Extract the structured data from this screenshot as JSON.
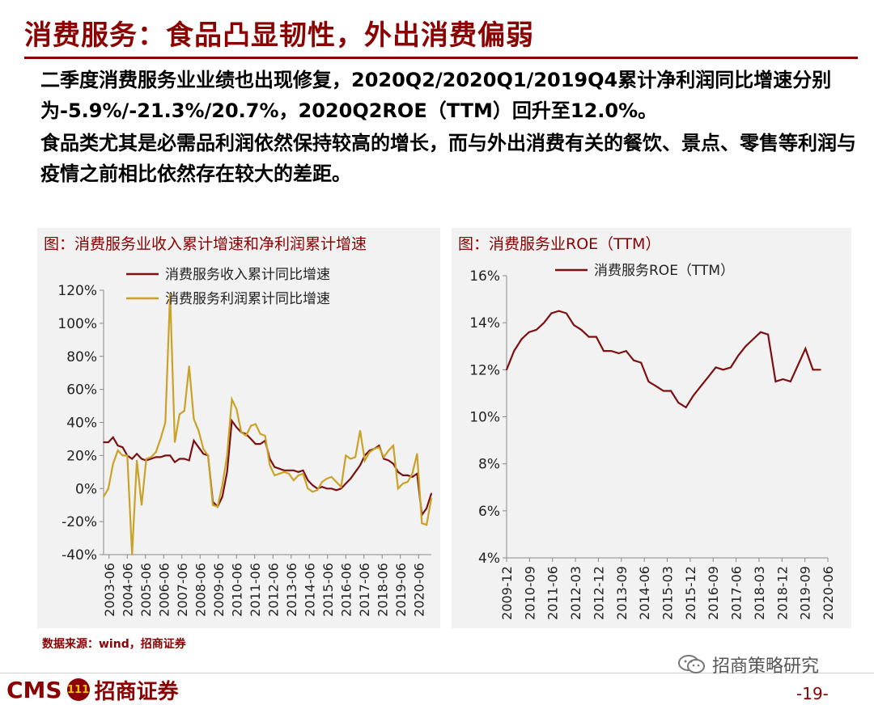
{
  "header": {
    "title": "消费服务：食品凸显韧性，外出消费偏弱"
  },
  "body": {
    "para1": "二季度消费服务业业绩也出现修复，2020Q2/2020Q1/2019Q4累计净利润同比增速分别为-5.9%/-21.3%/20.7%，2020Q2ROE（TTM）回升至12.0%。",
    "para2": "食品类尤其是必需品利润依然保持较高的增长，而与外出消费有关的餐饮、景点、零售等利润与疫情之前相比依然存在较大的差距。"
  },
  "footer": {
    "source": "数据来源：wind，招商证券",
    "brand_cms": "CMS",
    "brand_logo_text": "111",
    "brand_name": "招商证券",
    "wechat_label": "招商策略研究",
    "page_number": "-19-"
  },
  "colors": {
    "accent": "#8b0000",
    "series_revenue": "#7b1010",
    "series_profit": "#c9a227",
    "panel_bg": "#f2f2f2"
  },
  "chart_data": [
    {
      "type": "line",
      "title": "图：消费服务业收入累计增速和净利润累计增速",
      "xlabel": "",
      "ylabel": "",
      "ylim": [
        -40,
        120
      ],
      "y_ticks": [
        "-40%",
        "-20%",
        "0%",
        "20%",
        "40%",
        "60%",
        "80%",
        "100%",
        "120%"
      ],
      "y_tick_values": [
        -40,
        -20,
        0,
        20,
        40,
        60,
        80,
        100,
        120
      ],
      "x_tick_labels": [
        "2003-06",
        "2004-06",
        "2005-06",
        "2006-06",
        "2007-06",
        "2008-06",
        "2009-06",
        "2010-06",
        "2011-06",
        "2012-06",
        "2013-06",
        "2014-06",
        "2015-06",
        "2016-06",
        "2017-06",
        "2018-06",
        "2019-06",
        "2020-06"
      ],
      "x_start": 2003.25,
      "x_end": 2020.5,
      "legend_position": "top-left",
      "grid": false,
      "series": [
        {
          "name": "消费服务收入累计同比增速",
          "color": "#7b1010",
          "points": [
            [
              2003.25,
              28
            ],
            [
              2003.5,
              28
            ],
            [
              2003.75,
              31
            ],
            [
              2004.0,
              26
            ],
            [
              2004.25,
              25
            ],
            [
              2004.5,
              20
            ],
            [
              2004.75,
              18
            ],
            [
              2005.0,
              21
            ],
            [
              2005.25,
              18
            ],
            [
              2005.5,
              17
            ],
            [
              2005.75,
              18
            ],
            [
              2006.0,
              19
            ],
            [
              2006.25,
              19
            ],
            [
              2006.5,
              20
            ],
            [
              2006.75,
              20
            ],
            [
              2007.0,
              16
            ],
            [
              2007.25,
              18
            ],
            [
              2007.5,
              18
            ],
            [
              2007.75,
              17
            ],
            [
              2008.0,
              29
            ],
            [
              2008.25,
              25
            ],
            [
              2008.5,
              21
            ],
            [
              2008.75,
              20
            ],
            [
              2009.0,
              -8
            ],
            [
              2009.25,
              -11
            ],
            [
              2009.5,
              -5
            ],
            [
              2009.75,
              10
            ],
            [
              2010.0,
              41
            ],
            [
              2010.25,
              37
            ],
            [
              2010.5,
              34
            ],
            [
              2010.75,
              33
            ],
            [
              2011.0,
              30
            ],
            [
              2011.25,
              27
            ],
            [
              2011.5,
              27
            ],
            [
              2011.75,
              29
            ],
            [
              2012.0,
              18
            ],
            [
              2012.25,
              13
            ],
            [
              2012.5,
              12
            ],
            [
              2012.75,
              11
            ],
            [
              2013.0,
              11
            ],
            [
              2013.25,
              11
            ],
            [
              2013.5,
              10
            ],
            [
              2013.75,
              11
            ],
            [
              2014.0,
              5
            ],
            [
              2014.25,
              2
            ],
            [
              2014.5,
              0
            ],
            [
              2014.75,
              1
            ],
            [
              2015.0,
              0
            ],
            [
              2015.25,
              0
            ],
            [
              2015.5,
              -1
            ],
            [
              2015.75,
              0
            ],
            [
              2016.0,
              3
            ],
            [
              2016.25,
              6
            ],
            [
              2016.5,
              10
            ],
            [
              2016.75,
              14
            ],
            [
              2017.0,
              20
            ],
            [
              2017.25,
              23
            ],
            [
              2017.5,
              24
            ],
            [
              2017.75,
              26
            ],
            [
              2018.0,
              18
            ],
            [
              2018.25,
              17
            ],
            [
              2018.5,
              15
            ],
            [
              2018.75,
              10
            ],
            [
              2019.0,
              8
            ],
            [
              2019.25,
              8
            ],
            [
              2019.5,
              7
            ],
            [
              2019.75,
              9
            ],
            [
              2020.0,
              -16
            ],
            [
              2020.25,
              -12
            ],
            [
              2020.5,
              -3
            ]
          ]
        },
        {
          "name": "消费服务利润累计同比增速",
          "color": "#c9a227",
          "points": [
            [
              2003.25,
              -5
            ],
            [
              2003.5,
              0
            ],
            [
              2003.75,
              15
            ],
            [
              2004.0,
              23
            ],
            [
              2004.25,
              20
            ],
            [
              2004.5,
              20
            ],
            [
              2004.75,
              -40
            ],
            [
              2005.0,
              17
            ],
            [
              2005.25,
              -10
            ],
            [
              2005.5,
              18
            ],
            [
              2005.75,
              19
            ],
            [
              2006.0,
              22
            ],
            [
              2006.25,
              30
            ],
            [
              2006.5,
              40
            ],
            [
              2006.75,
              118
            ],
            [
              2007.0,
              28
            ],
            [
              2007.25,
              45
            ],
            [
              2007.5,
              47
            ],
            [
              2007.75,
              74
            ],
            [
              2008.0,
              42
            ],
            [
              2008.25,
              35
            ],
            [
              2008.5,
              24
            ],
            [
              2008.75,
              20
            ],
            [
              2009.0,
              -10
            ],
            [
              2009.25,
              -11
            ],
            [
              2009.5,
              2
            ],
            [
              2009.75,
              20
            ],
            [
              2010.0,
              54
            ],
            [
              2010.25,
              48
            ],
            [
              2010.5,
              34
            ],
            [
              2010.75,
              32
            ],
            [
              2011.0,
              38
            ],
            [
              2011.25,
              39
            ],
            [
              2011.5,
              33
            ],
            [
              2011.75,
              32
            ],
            [
              2012.0,
              14
            ],
            [
              2012.25,
              8
            ],
            [
              2012.5,
              9
            ],
            [
              2012.75,
              10
            ],
            [
              2013.0,
              9
            ],
            [
              2013.25,
              5
            ],
            [
              2013.5,
              8
            ],
            [
              2013.75,
              9
            ],
            [
              2014.0,
              0
            ],
            [
              2014.25,
              -2
            ],
            [
              2014.5,
              -1
            ],
            [
              2014.75,
              4
            ],
            [
              2015.0,
              6
            ],
            [
              2015.25,
              7
            ],
            [
              2015.5,
              4
            ],
            [
              2015.75,
              1
            ],
            [
              2016.0,
              20
            ],
            [
              2016.25,
              18
            ],
            [
              2016.5,
              19
            ],
            [
              2016.75,
              35
            ],
            [
              2017.0,
              17
            ],
            [
              2017.25,
              22
            ],
            [
              2017.5,
              24
            ],
            [
              2017.75,
              25
            ],
            [
              2018.0,
              19
            ],
            [
              2018.25,
              23
            ],
            [
              2018.5,
              26
            ],
            [
              2018.75,
              0
            ],
            [
              2019.0,
              3
            ],
            [
              2019.25,
              4
            ],
            [
              2019.5,
              9
            ],
            [
              2019.75,
              21
            ],
            [
              2020.0,
              -21
            ],
            [
              2020.25,
              -22
            ],
            [
              2020.5,
              -6
            ]
          ]
        }
      ]
    },
    {
      "type": "line",
      "title": "图：消费服务业ROE（TTM）",
      "xlabel": "",
      "ylabel": "",
      "ylim": [
        4,
        16
      ],
      "y_ticks": [
        "4%",
        "6%",
        "8%",
        "10%",
        "12%",
        "14%",
        "16%"
      ],
      "y_tick_values": [
        4,
        6,
        8,
        10,
        12,
        14,
        16
      ],
      "x_tick_labels": [
        "2009-12",
        "2010-09",
        "2011-06",
        "2012-03",
        "2012-12",
        "2013-09",
        "2014-06",
        "2015-03",
        "2015-12",
        "2016-09",
        "2017-06",
        "2018-03",
        "2018-12",
        "2019-09",
        "2020-06"
      ],
      "x_start": 2009.75,
      "x_end": 2020.5,
      "legend_position": "top-center",
      "grid": false,
      "series": [
        {
          "name": "消费服务ROE（TTM）",
          "color": "#7b1010",
          "points": [
            [
              2009.75,
              12.0
            ],
            [
              2010.0,
              12.8
            ],
            [
              2010.25,
              13.3
            ],
            [
              2010.5,
              13.6
            ],
            [
              2010.75,
              13.7
            ],
            [
              2011.0,
              14.0
            ],
            [
              2011.25,
              14.4
            ],
            [
              2011.5,
              14.5
            ],
            [
              2011.75,
              14.4
            ],
            [
              2012.0,
              13.9
            ],
            [
              2012.25,
              13.7
            ],
            [
              2012.5,
              13.4
            ],
            [
              2012.75,
              13.4
            ],
            [
              2013.0,
              12.8
            ],
            [
              2013.25,
              12.8
            ],
            [
              2013.5,
              12.7
            ],
            [
              2013.75,
              12.8
            ],
            [
              2014.0,
              12.4
            ],
            [
              2014.25,
              12.3
            ],
            [
              2014.5,
              11.5
            ],
            [
              2014.75,
              11.3
            ],
            [
              2015.0,
              11.1
            ],
            [
              2015.25,
              11.1
            ],
            [
              2015.5,
              10.6
            ],
            [
              2015.75,
              10.4
            ],
            [
              2016.0,
              10.9
            ],
            [
              2016.25,
              11.3
            ],
            [
              2016.5,
              11.7
            ],
            [
              2016.75,
              12.1
            ],
            [
              2017.0,
              12.0
            ],
            [
              2017.25,
              12.1
            ],
            [
              2017.5,
              12.6
            ],
            [
              2017.75,
              13.0
            ],
            [
              2018.0,
              13.3
            ],
            [
              2018.25,
              13.6
            ],
            [
              2018.5,
              13.5
            ],
            [
              2018.75,
              11.5
            ],
            [
              2019.0,
              11.6
            ],
            [
              2019.25,
              11.5
            ],
            [
              2019.5,
              12.2
            ],
            [
              2019.75,
              12.9
            ],
            [
              2020.0,
              12.0
            ],
            [
              2020.25,
              12.0
            ]
          ]
        }
      ]
    }
  ]
}
